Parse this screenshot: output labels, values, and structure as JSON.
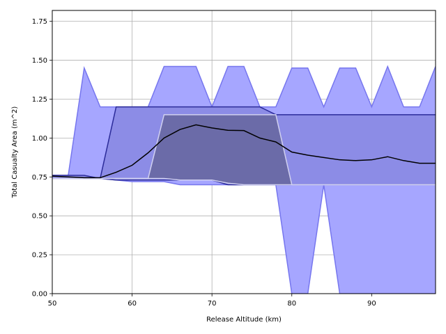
{
  "chart_data": {
    "type": "area",
    "title": "",
    "xlabel": "Release Altitude (km)",
    "ylabel": "Total Casualty Area (m^2)",
    "xlim": [
      50,
      98
    ],
    "ylim": [
      0,
      1.82
    ],
    "xticks": [
      50,
      60,
      70,
      80,
      90
    ],
    "yticks": [
      0.0,
      0.25,
      0.5,
      0.75,
      1.0,
      1.25,
      1.5,
      1.75
    ],
    "xtick_labels": [
      "50",
      "60",
      "70",
      "80",
      "90"
    ],
    "ytick_labels": [
      "0.00",
      "0.25",
      "0.50",
      "0.75",
      "1.00",
      "1.25",
      "1.50",
      "1.75"
    ],
    "grid": true,
    "colors": {
      "outer_band": "#a6a6ff",
      "outer_edge": "#7676ee",
      "middle_band": "#8c8ce6",
      "middle_edge": "#2b2b99",
      "inner_band": "#6b6ba8",
      "inner_edge": "#d0d0f0",
      "median": "#000000"
    },
    "series": [
      {
        "role": "outer-band",
        "x": [
          50,
          52,
          54,
          56,
          58,
          60,
          62,
          64,
          66,
          68,
          70,
          72,
          74,
          76,
          78,
          80,
          82,
          84,
          86,
          88,
          90,
          92,
          94,
          96,
          98
        ],
        "upper": [
          0.76,
          0.76,
          1.45,
          1.2,
          1.2,
          1.2,
          1.2,
          1.46,
          1.46,
          1.46,
          1.2,
          1.46,
          1.46,
          1.2,
          1.2,
          1.45,
          1.45,
          1.2,
          1.45,
          1.45,
          1.2,
          1.46,
          1.2,
          1.2,
          1.46
        ],
        "lower": [
          0.74,
          0.74,
          0.74,
          0.74,
          0.73,
          0.72,
          0.72,
          0.72,
          0.7,
          0.7,
          0.7,
          0.7,
          0.7,
          0.7,
          0.7,
          0.0,
          0.0,
          0.7,
          0.0,
          0.0,
          0.0,
          0.0,
          0.0,
          0.0,
          0.0
        ]
      },
      {
        "role": "middle-band",
        "x": [
          50,
          52,
          54,
          56,
          58,
          60,
          62,
          64,
          66,
          68,
          70,
          72,
          74,
          76,
          78,
          80,
          82,
          84,
          86,
          88,
          90,
          92,
          94,
          96,
          98
        ],
        "upper": [
          0.76,
          0.76,
          0.76,
          0.74,
          1.2,
          1.2,
          1.2,
          1.2,
          1.2,
          1.2,
          1.2,
          1.2,
          1.2,
          1.2,
          1.15,
          1.15,
          1.15,
          1.15,
          1.15,
          1.15,
          1.15,
          1.15,
          1.15,
          1.15,
          1.15
        ],
        "lower": [
          0.74,
          0.74,
          0.74,
          0.74,
          0.73,
          0.73,
          0.73,
          0.73,
          0.73,
          0.73,
          0.73,
          0.7,
          0.7,
          0.7,
          0.7,
          0.7,
          0.7,
          0.7,
          0.7,
          0.7,
          0.7,
          0.7,
          0.7,
          0.7,
          0.7
        ]
      },
      {
        "role": "inner-band",
        "x": [
          50,
          52,
          54,
          56,
          58,
          60,
          62,
          64,
          66,
          68,
          70,
          72,
          74,
          76,
          78,
          80,
          82,
          84,
          86,
          88,
          90,
          92,
          94,
          96,
          98
        ],
        "upper": [
          0.74,
          0.74,
          0.74,
          0.74,
          0.74,
          0.74,
          0.74,
          1.15,
          1.15,
          1.15,
          1.15,
          1.15,
          1.15,
          1.15,
          1.15,
          0.7,
          0.7,
          0.7,
          0.7,
          0.7,
          0.7,
          0.7,
          0.7,
          0.7,
          0.7
        ],
        "lower": [
          0.74,
          0.74,
          0.74,
          0.74,
          0.74,
          0.74,
          0.74,
          0.74,
          0.73,
          0.73,
          0.73,
          0.71,
          0.7,
          0.7,
          0.7,
          0.7,
          0.7,
          0.7,
          0.7,
          0.7,
          0.7,
          0.7,
          0.7,
          0.7,
          0.7
        ]
      },
      {
        "role": "median",
        "x": [
          50,
          52,
          54,
          56,
          58,
          60,
          62,
          64,
          66,
          68,
          70,
          72,
          74,
          76,
          78,
          80,
          82,
          84,
          86,
          88,
          90,
          92,
          94,
          96,
          98
        ],
        "values": [
          0.755,
          0.75,
          0.745,
          0.745,
          0.78,
          0.825,
          0.905,
          1.0,
          1.055,
          1.085,
          1.065,
          1.05,
          1.048,
          1.0,
          0.975,
          0.91,
          0.89,
          0.875,
          0.86,
          0.855,
          0.86,
          0.88,
          0.855,
          0.838,
          0.838
        ]
      }
    ]
  }
}
